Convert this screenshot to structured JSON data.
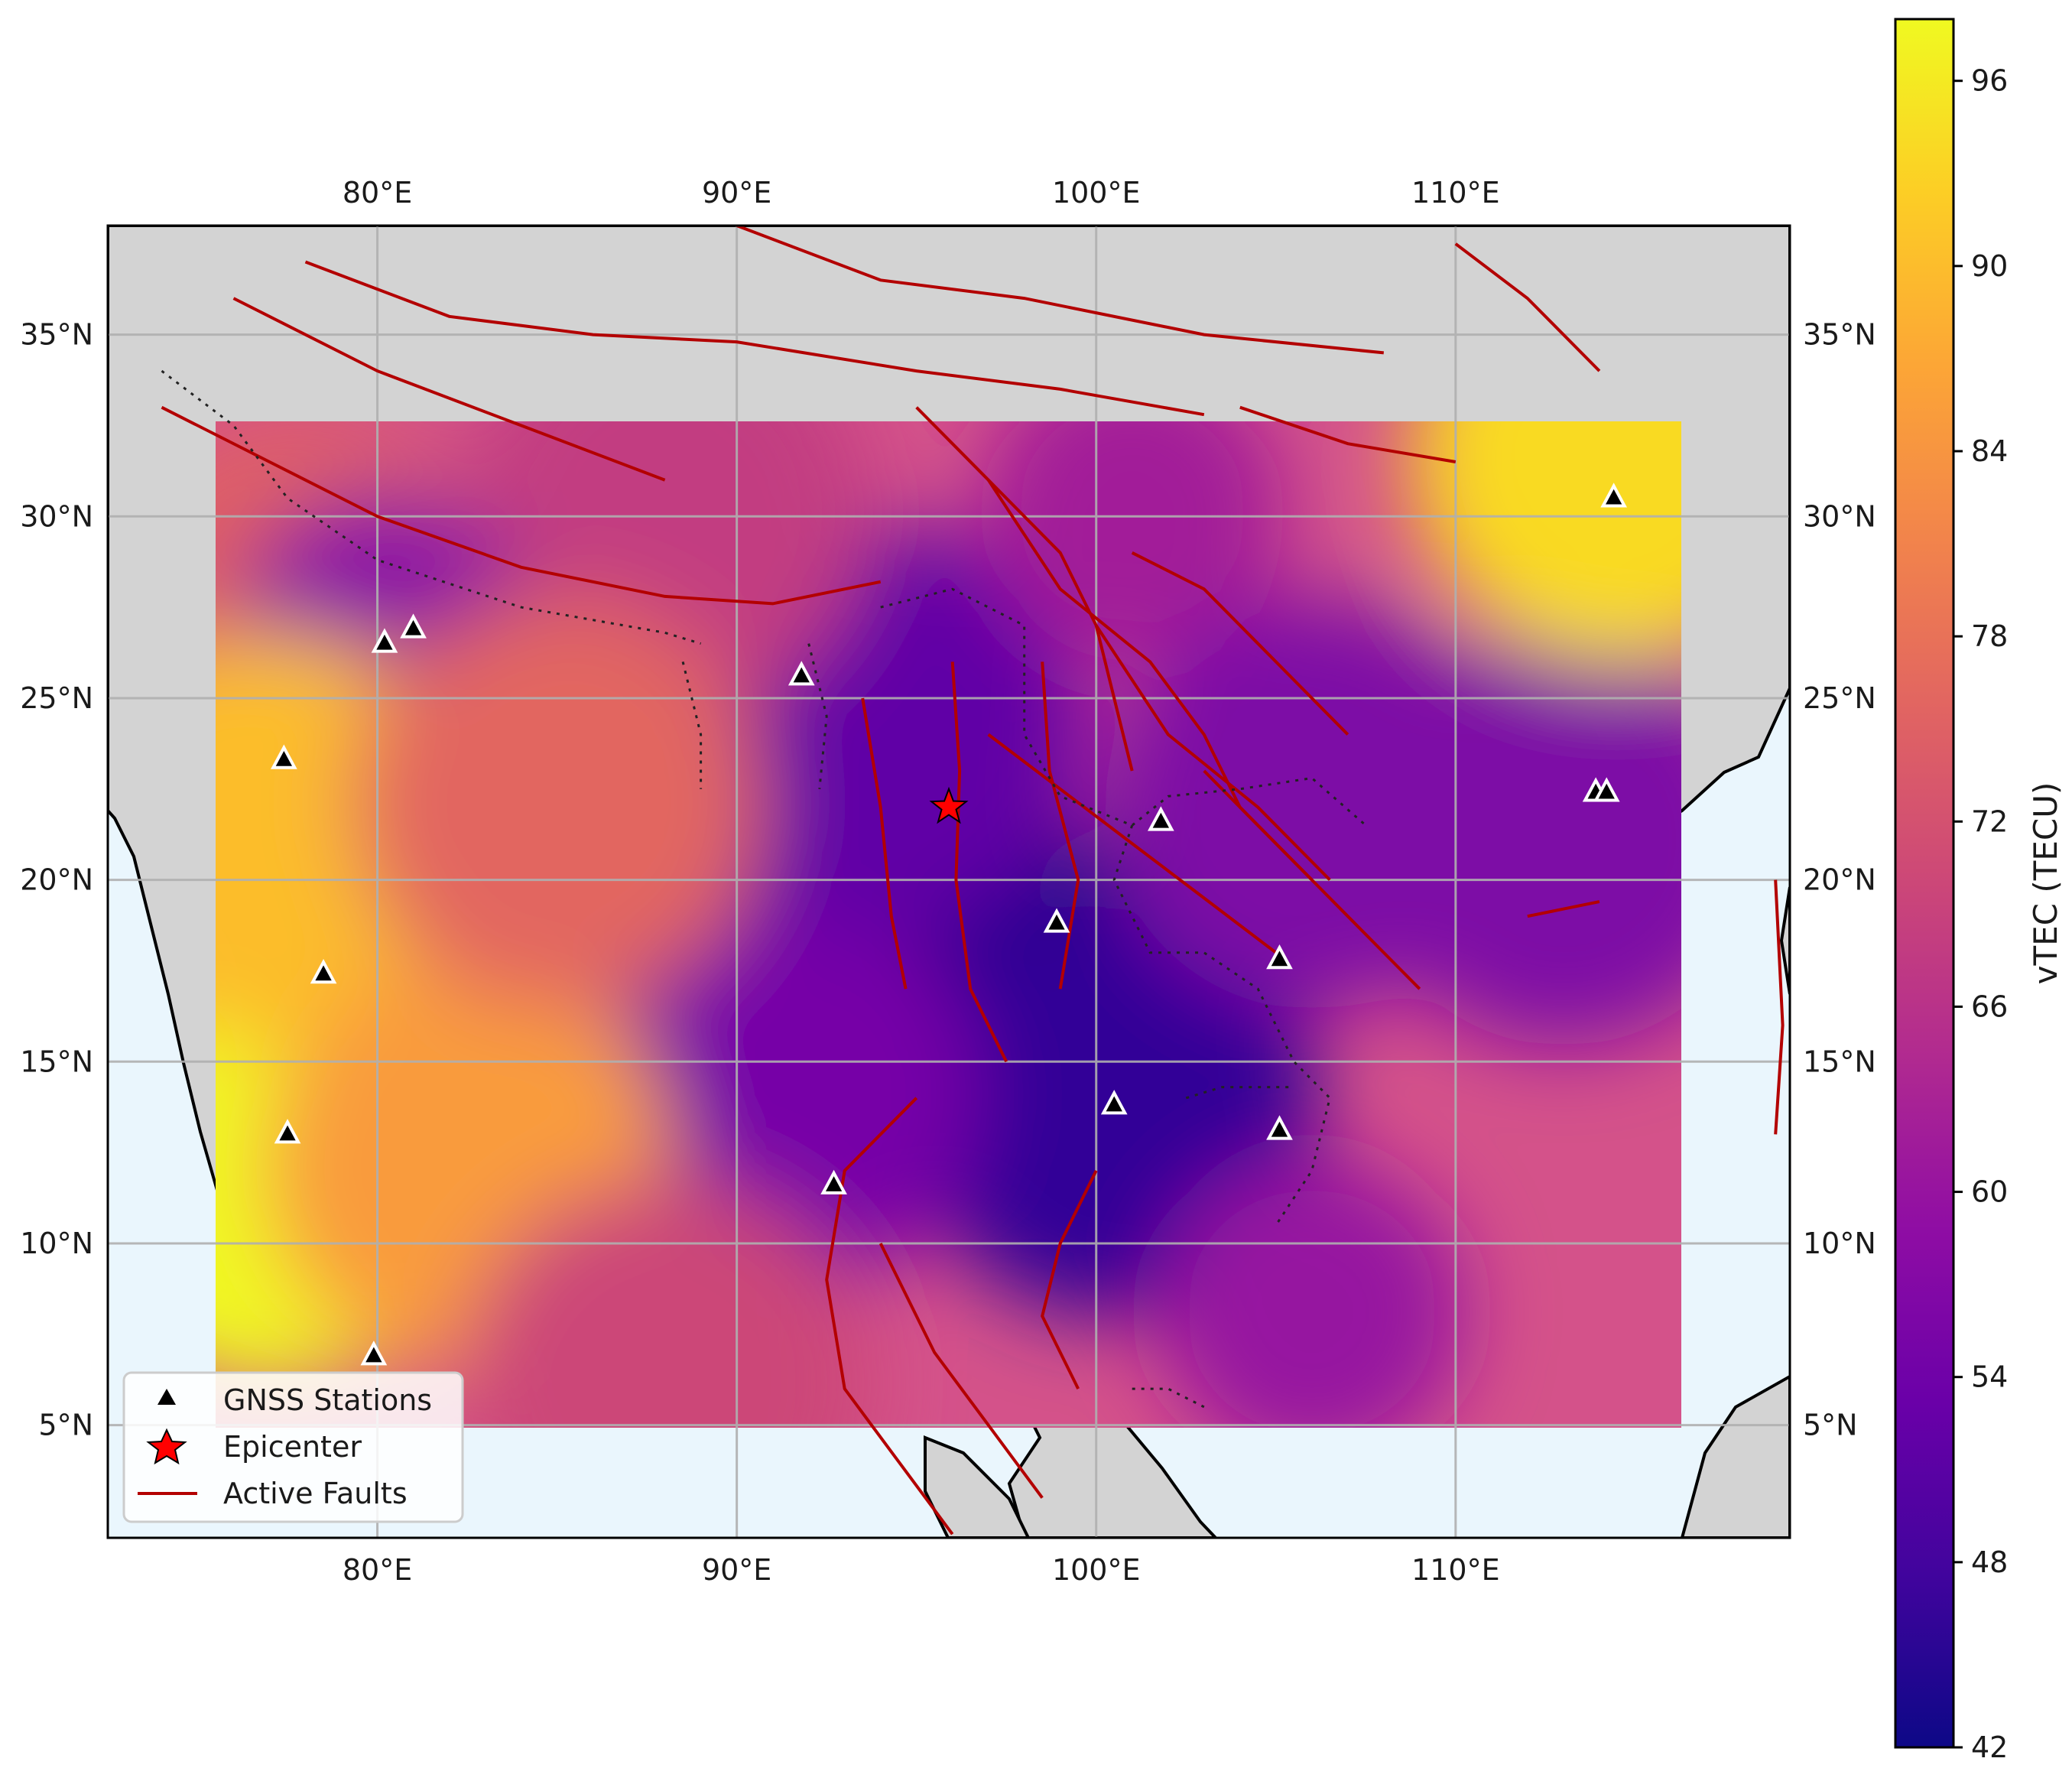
{
  "map": {
    "x_ticks": [
      "80°E",
      "90°E",
      "100°E",
      "110°E"
    ],
    "x_tick_values": [
      80,
      90,
      100,
      110
    ],
    "y_ticks": [
      "5°N",
      "10°N",
      "15°N",
      "20°N",
      "25°N",
      "30°N",
      "35°N"
    ],
    "y_tick_values": [
      5,
      10,
      15,
      20,
      25,
      30,
      35
    ],
    "extent": {
      "lon_min": 72.5,
      "lon_max": 119.3,
      "lat_min": 1.9,
      "lat_max": 38.0
    },
    "grid": true,
    "colors": {
      "land": "#d3d3d3",
      "ocean": "#eaf6fd",
      "faults": "#b30000",
      "coast": "#000000"
    }
  },
  "colorbar": {
    "label": "vTEC (TECU)",
    "ticks": [
      "42",
      "48",
      "54",
      "60",
      "66",
      "72",
      "78",
      "84",
      "90",
      "96"
    ],
    "tick_values": [
      42,
      48,
      54,
      60,
      66,
      72,
      78,
      84,
      90,
      96
    ],
    "range": [
      42,
      98
    ],
    "colormap": "plasma"
  },
  "legend": {
    "items": [
      {
        "label": "GNSS Stations",
        "marker": "triangle",
        "color": "#000000"
      },
      {
        "label": "Epicenter",
        "marker": "star",
        "color": "#ff0000"
      },
      {
        "label": "Active Faults",
        "marker": "line",
        "color": "#b30000"
      }
    ]
  },
  "chart_data": {
    "type": "heatmap",
    "variable": "vTEC",
    "units": "TECU",
    "value_range": [
      42,
      98
    ],
    "coverage": {
      "lon": [
        75.5,
        116.2
      ],
      "lat": [
        4.9,
        32.5
      ]
    },
    "field_anchors": [
      {
        "lon": 96.5,
        "lat": 16.5,
        "value": 43
      },
      {
        "lon": 100.5,
        "lat": 13.5,
        "value": 46
      },
      {
        "lon": 91,
        "lat": 14,
        "value": 55
      },
      {
        "lon": 94,
        "lat": 24,
        "value": 52
      },
      {
        "lon": 101,
        "lat": 30,
        "value": 62
      },
      {
        "lon": 88,
        "lat": 30,
        "value": 68
      },
      {
        "lon": 106,
        "lat": 22,
        "value": 56
      },
      {
        "lon": 113,
        "lat": 21,
        "value": 56
      },
      {
        "lon": 114.5,
        "lat": 31.5,
        "value": 94
      },
      {
        "lon": 78,
        "lat": 27,
        "value": 75
      },
      {
        "lon": 80.2,
        "lat": 26.4,
        "value": 58
      },
      {
        "lon": 77,
        "lat": 11.5,
        "value": 98
      },
      {
        "lon": 77,
        "lat": 21,
        "value": 90
      },
      {
        "lon": 82.5,
        "lat": 12,
        "value": 85
      },
      {
        "lon": 85,
        "lat": 22,
        "value": 76
      },
      {
        "lon": 106,
        "lat": 8,
        "value": 60
      },
      {
        "lon": 88,
        "lat": 6,
        "value": 70
      }
    ],
    "gnss_stations": [
      {
        "lon": 114.4,
        "lat": 30.5
      },
      {
        "lon": 80.2,
        "lat": 26.5
      },
      {
        "lon": 81.0,
        "lat": 26.9
      },
      {
        "lon": 77.4,
        "lat": 23.3
      },
      {
        "lon": 91.8,
        "lat": 25.6
      },
      {
        "lon": 113.9,
        "lat": 22.4
      },
      {
        "lon": 114.2,
        "lat": 22.4
      },
      {
        "lon": 101.8,
        "lat": 21.6
      },
      {
        "lon": 98.9,
        "lat": 18.8
      },
      {
        "lon": 105.1,
        "lat": 17.8
      },
      {
        "lon": 78.5,
        "lat": 17.4
      },
      {
        "lon": 100.5,
        "lat": 13.8
      },
      {
        "lon": 105.1,
        "lat": 13.1
      },
      {
        "lon": 77.5,
        "lat": 13.0
      },
      {
        "lon": 92.7,
        "lat": 11.6
      },
      {
        "lon": 79.9,
        "lat": 6.9
      }
    ],
    "epicenter": {
      "lon": 95.9,
      "lat": 22.0
    }
  }
}
